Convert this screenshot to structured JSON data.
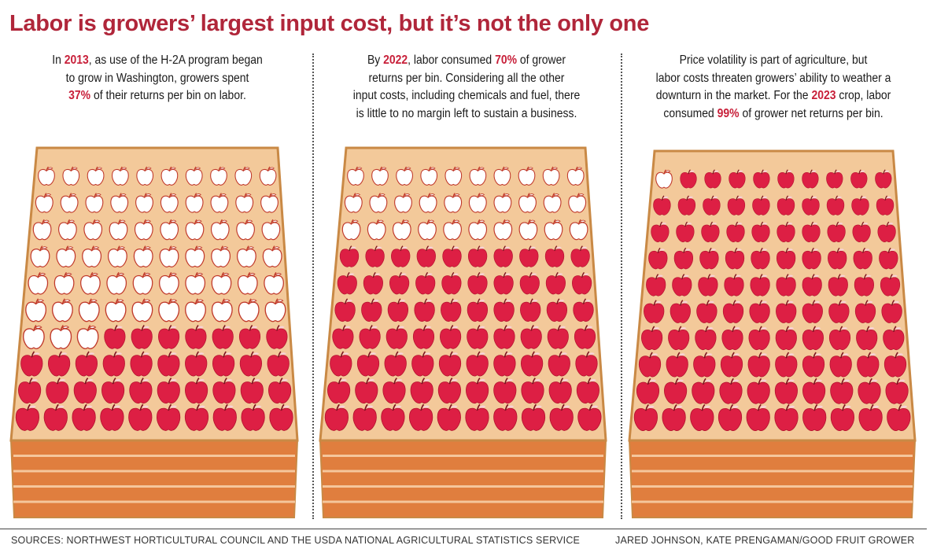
{
  "title": "Labor is growers’ largest input cost, but it’s not the only one",
  "colors": {
    "title": "#b0263a",
    "highlight": "#c8203a",
    "labor_apple": "#dd1f44",
    "other_apple": "#ffffff",
    "bin_top": "#f3c99a",
    "bin_side": "#e07e3e",
    "bin_edge": "#c98945"
  },
  "panels": [
    {
      "lines": [
        [
          {
            "t": "In "
          },
          {
            "t": "2013",
            "hl": true
          },
          {
            "t": ", as use of the H-2A program began"
          }
        ],
        [
          {
            "t": "to grow in Washington, growers spent"
          }
        ],
        [
          {
            "t": "37%",
            "hl": true
          },
          {
            "t": " of their returns per bin on labor."
          }
        ]
      ]
    },
    {
      "lines": [
        [
          {
            "t": "By "
          },
          {
            "t": "2022",
            "hl": true
          },
          {
            "t": ", labor consumed "
          },
          {
            "t": "70%",
            "hl": true
          },
          {
            "t": " of grower"
          }
        ],
        [
          {
            "t": "returns per bin. Considering all the other"
          }
        ],
        [
          {
            "t": "input costs, including chemicals and fuel, there"
          }
        ],
        [
          {
            "t": "is little to no margin left to sustain a business."
          }
        ]
      ]
    },
    {
      "lines": [
        [
          {
            "t": "Price volatility is part of agriculture, but"
          }
        ],
        [
          {
            "t": "labor costs threaten growers’ ability to weather a"
          }
        ],
        [
          {
            "t": "downturn in the market. For the "
          },
          {
            "t": "2023",
            "hl": true
          },
          {
            "t": " crop, labor"
          }
        ],
        [
          {
            "t": "consumed "
          },
          {
            "t": "99%",
            "hl": true
          },
          {
            "t": " of grower net returns per bin."
          }
        ]
      ]
    }
  ],
  "chart_data": {
    "type": "pictogram",
    "unit": "apples per bin (1 apple = 1% of grower returns per bin)",
    "total_per_bin": 100,
    "categories": [
      "2013",
      "2022",
      "2023"
    ],
    "series": [
      {
        "values": [
          37,
          70,
          99
        ]
      },
      {
        "values": [
          63,
          30,
          1
        ]
      }
    ]
  },
  "footer": {
    "sources": "SOURCES: NORTHWEST HORTICULTURAL COUNCIL AND THE USDA NATIONAL AGRICULTURAL STATISTICS SERVICE",
    "credit": "JARED JOHNSON, KATE PRENGAMAN/GOOD FRUIT GROWER"
  }
}
